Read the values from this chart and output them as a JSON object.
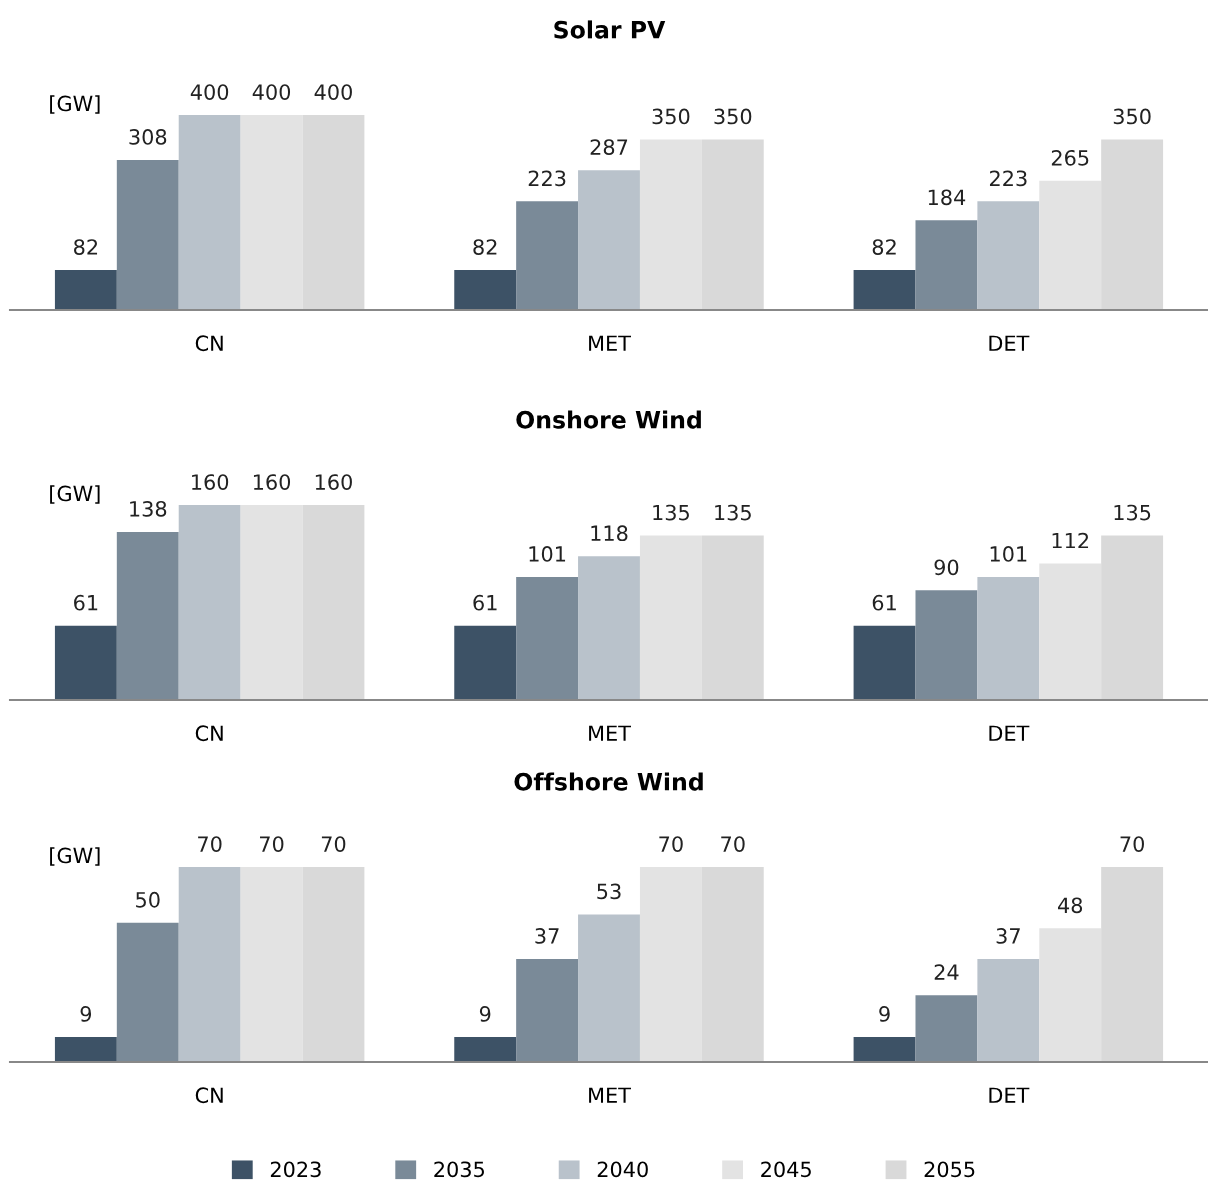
{
  "chart_data": [
    {
      "type": "bar",
      "title": "Solar PV",
      "ylabel": "[GW]",
      "categories": [
        "CN",
        "MET",
        "DET"
      ],
      "data_labels": true,
      "grid": false,
      "legend": "bottom",
      "series": [
        {
          "name": "2023",
          "color": "#3d5266",
          "values": [
            82,
            82,
            82
          ]
        },
        {
          "name": "2035",
          "color": "#7a8a98",
          "values": [
            308,
            223,
            184
          ]
        },
        {
          "name": "2040",
          "color": "#b9c2cb",
          "values": [
            400,
            287,
            223
          ]
        },
        {
          "name": "2045",
          "color": "#e3e3e3",
          "values": [
            400,
            350,
            265
          ]
        },
        {
          "name": "2055",
          "color": "#d9d9d9",
          "values": [
            400,
            350,
            350
          ]
        }
      ]
    },
    {
      "type": "bar",
      "title": "Onshore Wind",
      "ylabel": "[GW]",
      "categories": [
        "CN",
        "MET",
        "DET"
      ],
      "data_labels": true,
      "grid": false,
      "legend": false,
      "series": [
        {
          "name": "2023",
          "color": "#3d5266",
          "values": [
            61,
            61,
            61
          ]
        },
        {
          "name": "2035",
          "color": "#7a8a98",
          "values": [
            138,
            101,
            90
          ]
        },
        {
          "name": "2040",
          "color": "#b9c2cb",
          "values": [
            160,
            118,
            101
          ]
        },
        {
          "name": "2045",
          "color": "#e3e3e3",
          "values": [
            160,
            135,
            112
          ]
        },
        {
          "name": "2055",
          "color": "#d9d9d9",
          "values": [
            160,
            135,
            135
          ]
        }
      ]
    },
    {
      "type": "bar",
      "title": "Offshore Wind",
      "ylabel": "[GW]",
      "categories": [
        "CN",
        "MET",
        "DET"
      ],
      "data_labels": true,
      "grid": false,
      "legend": false,
      "series": [
        {
          "name": "2023",
          "color": "#3d5266",
          "values": [
            9,
            9,
            9
          ]
        },
        {
          "name": "2035",
          "color": "#7a8a98",
          "values": [
            50,
            37,
            24
          ]
        },
        {
          "name": "2040",
          "color": "#b9c2cb",
          "values": [
            70,
            53,
            37
          ]
        },
        {
          "name": "2045",
          "color": "#e3e3e3",
          "values": [
            70,
            70,
            48
          ]
        },
        {
          "name": "2055",
          "color": "#d9d9d9",
          "values": [
            70,
            70,
            70
          ]
        }
      ]
    }
  ]
}
